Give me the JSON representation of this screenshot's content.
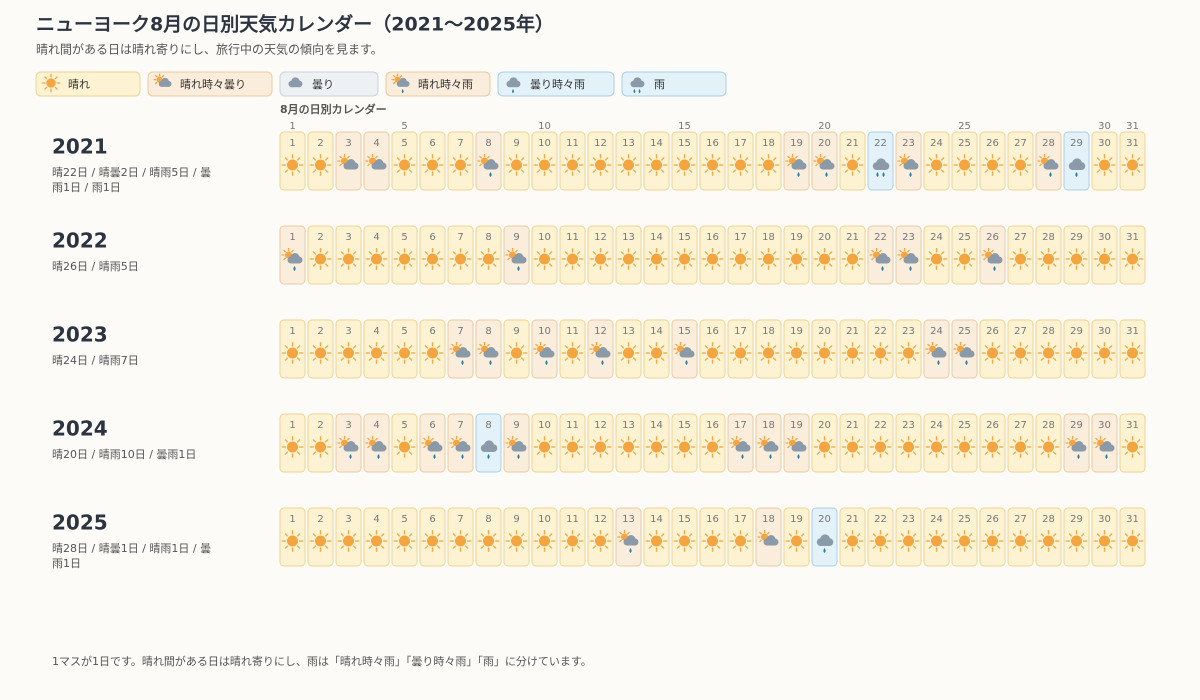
{
  "header": {
    "title": "ニューヨーク8月の日別天気カレンダー（2021〜2025年）",
    "subtitle": "晴れ間がある日は晴れ寄りにし、旅行中の天気の傾向を見ます。"
  },
  "legend": [
    {
      "label": "晴れ",
      "fill": "#fdf3d2",
      "stroke": "#efd390"
    },
    {
      "label": "晴れ時々曇り",
      "fill": "#fbeddb",
      "stroke": "#ebcb9f"
    },
    {
      "label": "曇り",
      "fill": "#eef1f4",
      "stroke": "#c9d3dc"
    },
    {
      "label": "晴れ時々雨",
      "fill": "#fbeddb",
      "stroke": "#ebcb9f"
    },
    {
      "label": "曇り時々雨",
      "fill": "#e3f1f9",
      "stroke": "#a9cfe6"
    },
    {
      "label": "雨",
      "fill": "#e3f1f9",
      "stroke": "#a9cfe6"
    }
  ],
  "calendar": {
    "label": "8月の日別カレンダー",
    "day_ticks": [
      1,
      5,
      10,
      15,
      20,
      25,
      30,
      31
    ],
    "days": [
      1,
      2,
      3,
      4,
      5,
      6,
      7,
      8,
      9,
      10,
      11,
      12,
      13,
      14,
      15,
      16,
      17,
      18,
      19,
      20,
      21,
      22,
      23,
      24,
      25,
      26,
      27,
      28,
      29,
      30,
      31
    ],
    "years": [
      {
        "year": "2021",
        "summary": "晴22日 / 晴曇2日 / 晴雨5日 / 曇雨1日 / 雨1日",
        "weather": [
          "晴れ",
          "晴れ",
          "晴れ時々曇り",
          "晴れ時々曇り",
          "晴れ",
          "晴れ",
          "晴れ",
          "晴れ時々雨",
          "晴れ",
          "晴れ",
          "晴れ",
          "晴れ",
          "晴れ",
          "晴れ",
          "晴れ",
          "晴れ",
          "晴れ",
          "晴れ",
          "晴れ時々雨",
          "晴れ時々雨",
          "晴れ",
          "雨",
          "晴れ時々雨",
          "晴れ",
          "晴れ",
          "晴れ",
          "晴れ",
          "晴れ時々雨",
          "曇り時々雨",
          "晴れ",
          "晴れ"
        ]
      },
      {
        "year": "2022",
        "summary": "晴26日 / 晴雨5日",
        "weather": [
          "晴れ時々雨",
          "晴れ",
          "晴れ",
          "晴れ",
          "晴れ",
          "晴れ",
          "晴れ",
          "晴れ",
          "晴れ時々雨",
          "晴れ",
          "晴れ",
          "晴れ",
          "晴れ",
          "晴れ",
          "晴れ",
          "晴れ",
          "晴れ",
          "晴れ",
          "晴れ",
          "晴れ",
          "晴れ",
          "晴れ時々雨",
          "晴れ時々雨",
          "晴れ",
          "晴れ",
          "晴れ時々雨",
          "晴れ",
          "晴れ",
          "晴れ",
          "晴れ",
          "晴れ"
        ]
      },
      {
        "year": "2023",
        "summary": "晴24日 / 晴雨7日",
        "weather": [
          "晴れ",
          "晴れ",
          "晴れ",
          "晴れ",
          "晴れ",
          "晴れ",
          "晴れ時々雨",
          "晴れ時々雨",
          "晴れ",
          "晴れ時々雨",
          "晴れ",
          "晴れ時々雨",
          "晴れ",
          "晴れ",
          "晴れ時々雨",
          "晴れ",
          "晴れ",
          "晴れ",
          "晴れ",
          "晴れ",
          "晴れ",
          "晴れ",
          "晴れ",
          "晴れ時々雨",
          "晴れ時々雨",
          "晴れ",
          "晴れ",
          "晴れ",
          "晴れ",
          "晴れ",
          "晴れ"
        ]
      },
      {
        "year": "2024",
        "summary": "晴20日 / 晴雨10日 / 曇雨1日",
        "weather": [
          "晴れ",
          "晴れ",
          "晴れ時々雨",
          "晴れ時々雨",
          "晴れ",
          "晴れ時々雨",
          "晴れ時々雨",
          "曇り時々雨",
          "晴れ時々雨",
          "晴れ",
          "晴れ",
          "晴れ",
          "晴れ",
          "晴れ",
          "晴れ",
          "晴れ",
          "晴れ時々雨",
          "晴れ時々雨",
          "晴れ時々雨",
          "晴れ",
          "晴れ",
          "晴れ",
          "晴れ",
          "晴れ",
          "晴れ",
          "晴れ",
          "晴れ",
          "晴れ",
          "晴れ時々雨",
          "晴れ時々雨",
          "晴れ"
        ]
      },
      {
        "year": "2025",
        "summary": "晴28日 / 晴曇1日 / 晴雨1日 / 曇雨1日",
        "weather": [
          "晴れ",
          "晴れ",
          "晴れ",
          "晴れ",
          "晴れ",
          "晴れ",
          "晴れ",
          "晴れ",
          "晴れ",
          "晴れ",
          "晴れ",
          "晴れ",
          "晴れ時々雨",
          "晴れ",
          "晴れ",
          "晴れ",
          "晴れ",
          "晴れ時々曇り",
          "晴れ",
          "曇り時々雨",
          "晴れ",
          "晴れ",
          "晴れ",
          "晴れ",
          "晴れ",
          "晴れ",
          "晴れ",
          "晴れ",
          "晴れ",
          "晴れ",
          "晴れ"
        ]
      }
    ]
  },
  "footnote": "1マスが1日です。晴れ間がある日は晴れ寄りにし、雨は「晴れ時々雨」「曇り時々雨」「雨」に分けています。"
}
